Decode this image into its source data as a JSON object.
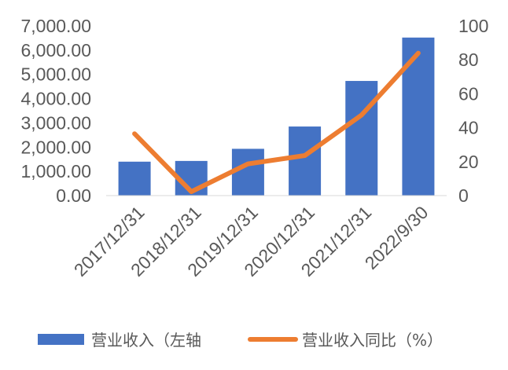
{
  "chart_data": {
    "type": "bar",
    "categories": [
      "2017/12/31",
      "2018/12/31",
      "2019/12/31",
      "2020/12/31",
      "2021/12/31",
      "2022/9/30"
    ],
    "series": [
      {
        "name": "营业收入（左轴",
        "type": "bar",
        "axis": "left",
        "color": "#4472C4",
        "values": [
          1400,
          1430,
          1930,
          2850,
          4730,
          6520
        ]
      },
      {
        "name": "营业收入同比（%）",
        "type": "line",
        "axis": "right",
        "color": "#ED7D31",
        "values": [
          36.5,
          2.3,
          18.7,
          23.6,
          47.5,
          84.0
        ]
      }
    ],
    "y_left": {
      "ylim": [
        0,
        7000
      ],
      "ticks": [
        "0.00",
        "1,000.00",
        "2,000.00",
        "3,000.00",
        "4,000.00",
        "5,000.00",
        "6,000.00",
        "7,000.00"
      ]
    },
    "y_right": {
      "ylim": [
        0,
        100
      ],
      "ticks": [
        "0",
        "20",
        "40",
        "60",
        "80",
        "100"
      ]
    },
    "legend_position": "bottom",
    "grid": false
  }
}
